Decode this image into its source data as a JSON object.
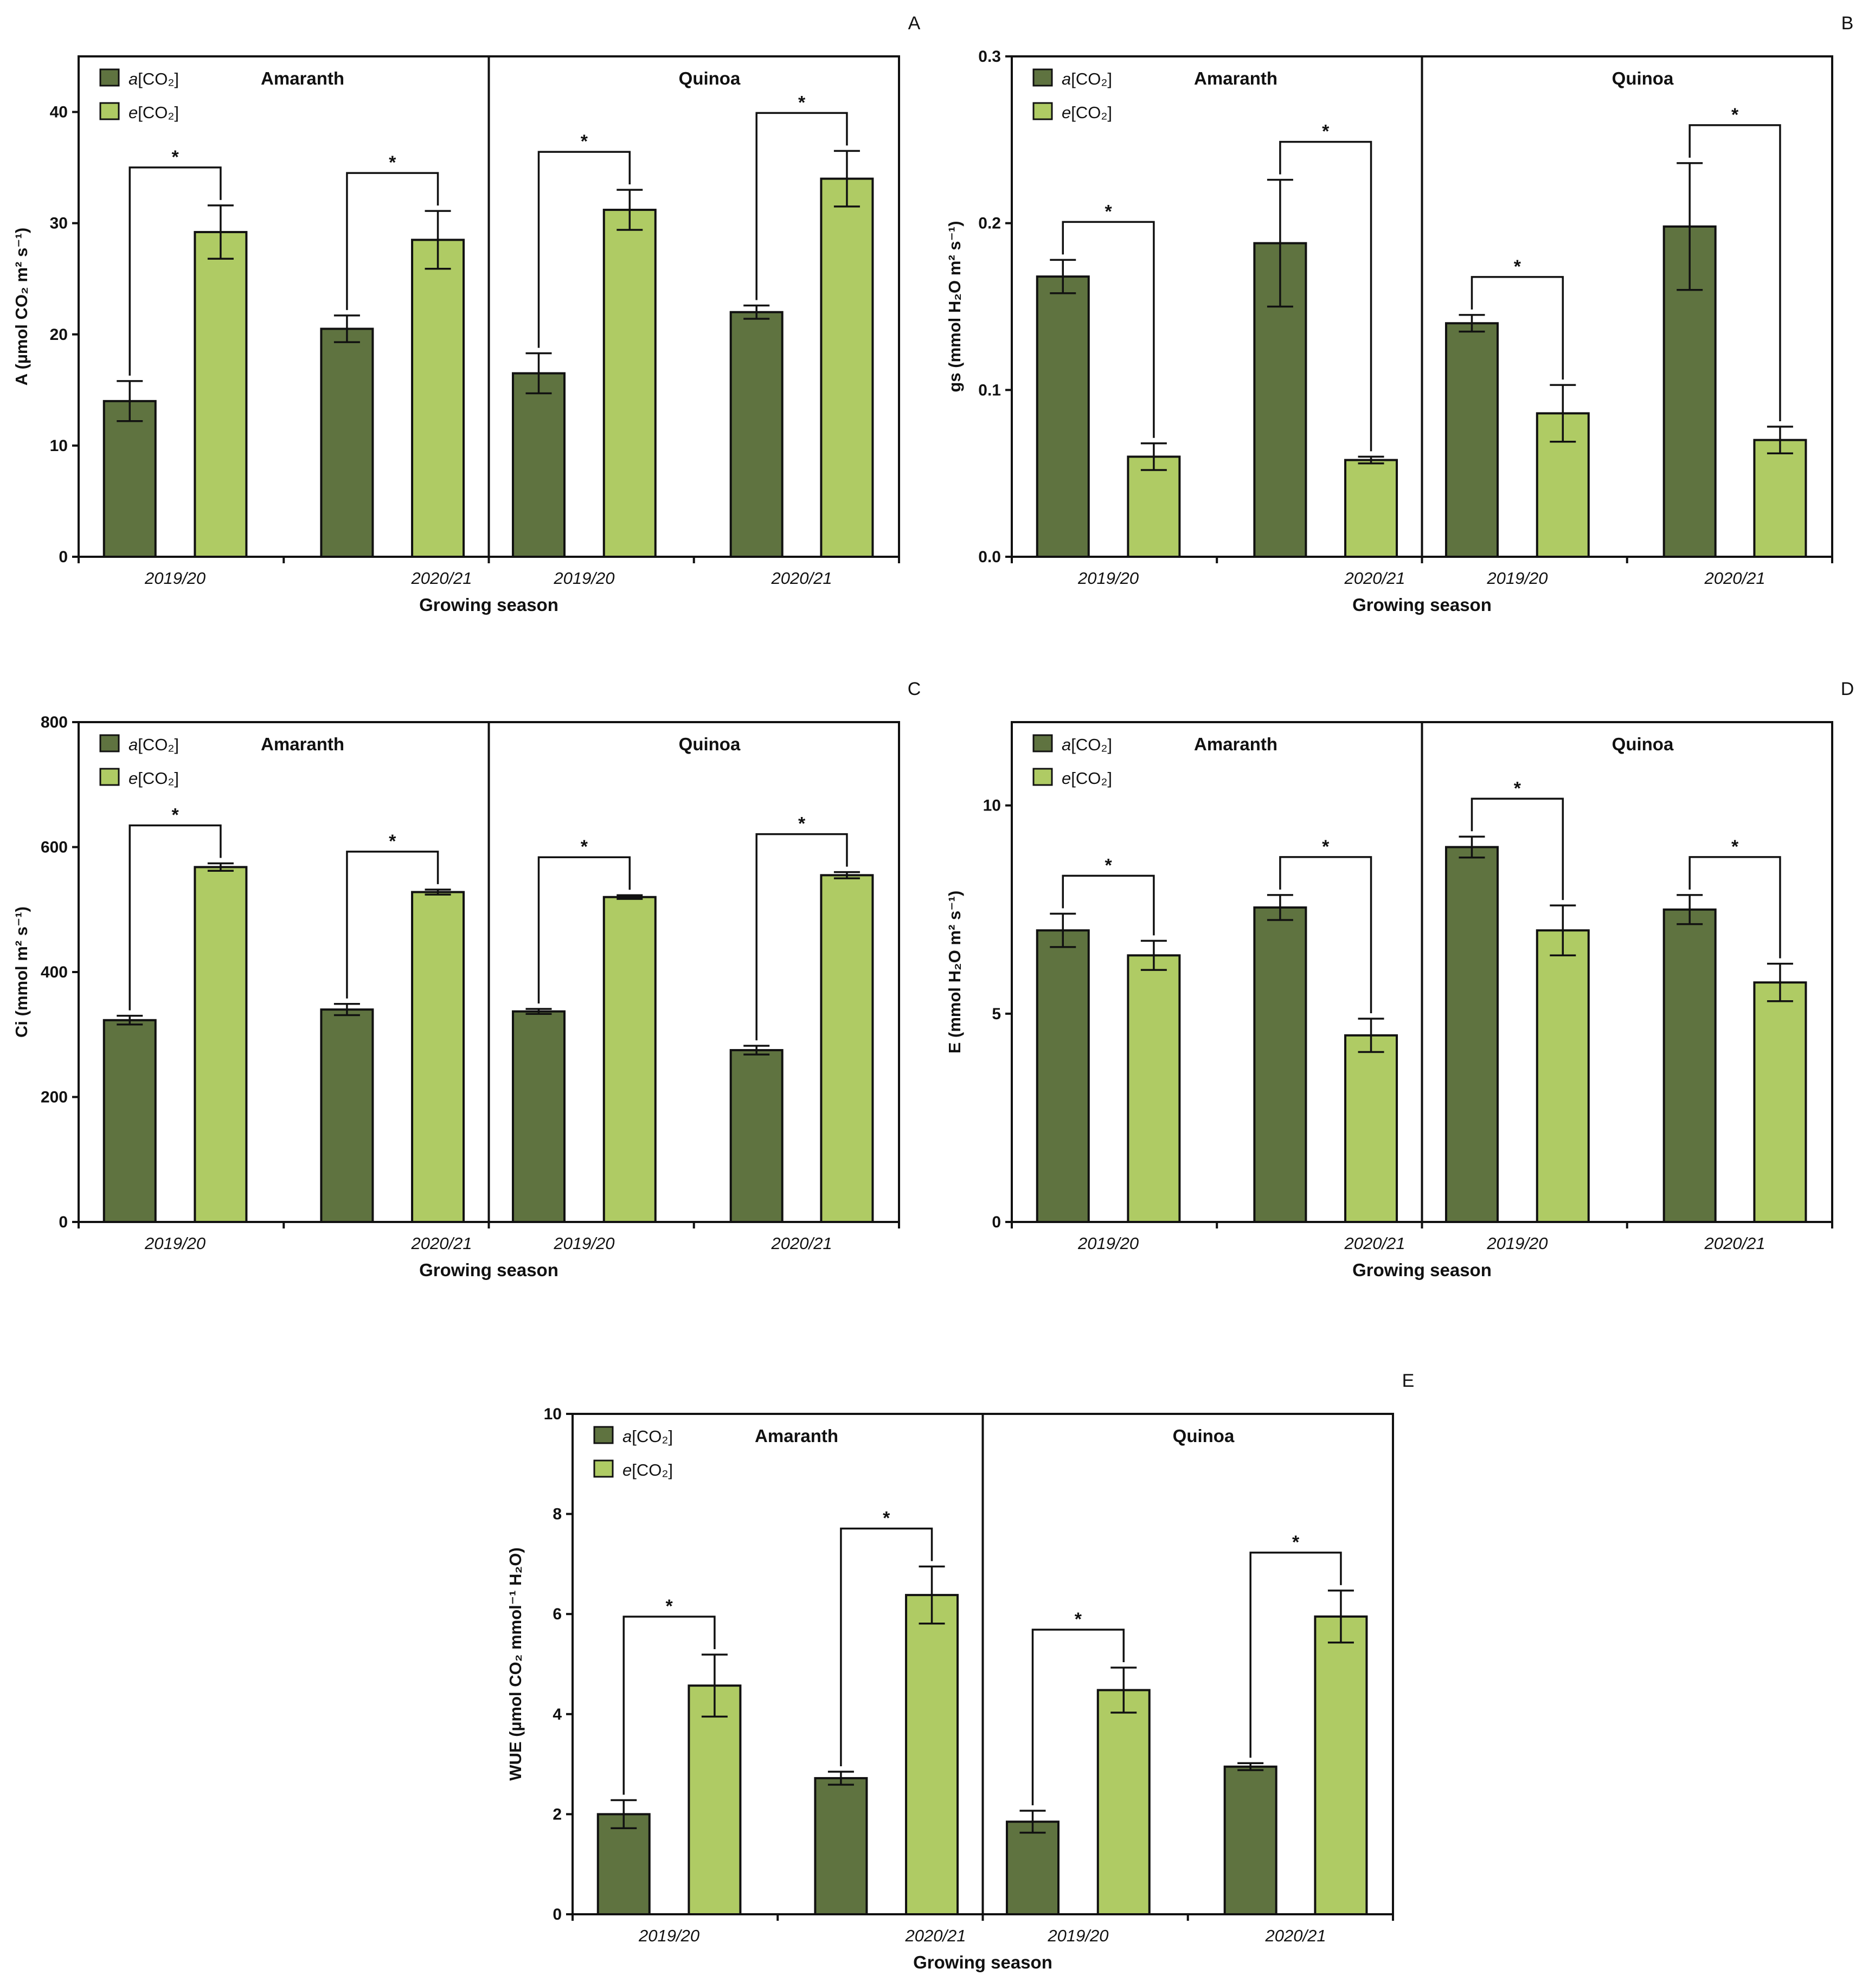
{
  "colors": {
    "ambient": "#5f7340",
    "elevated": "#afcb64",
    "stroke": "#111111"
  },
  "chart_data": [
    {
      "type": "bar",
      "panel": "A",
      "ylabel": "A (µmol CO₂ m² s⁻¹)",
      "xlabel": "Growing season",
      "ylim": [
        0,
        45
      ],
      "yticks": [
        0,
        10,
        20,
        30,
        40
      ],
      "groups": [
        "Amaranth",
        "Quinoa"
      ],
      "categories": [
        "2019/20",
        "2020/21",
        "2019/20",
        "2020/21"
      ],
      "legend": [
        {
          "prefix": "a",
          "rest": "[CO₂]"
        },
        {
          "prefix": "e",
          "rest": "[CO₂]"
        }
      ],
      "series": [
        {
          "name": "a[CO₂]",
          "values": [
            14.0,
            20.5,
            16.5,
            22.0
          ],
          "errors": [
            1.8,
            1.2,
            1.8,
            0.6
          ]
        },
        {
          "name": "e[CO₂]",
          "values": [
            29.2,
            28.5,
            31.2,
            34.0
          ],
          "errors": [
            2.4,
            2.6,
            1.8,
            2.5
          ]
        }
      ],
      "significance": [
        "*",
        "*",
        "*",
        "*"
      ]
    },
    {
      "type": "bar",
      "panel": "B",
      "ylabel": "gs (mmol H₂O m² s⁻¹)",
      "xlabel": "Growing season",
      "ylim": [
        0,
        0.3
      ],
      "yticks": [
        0.0,
        0.1,
        0.2,
        0.3
      ],
      "groups": [
        "Amaranth",
        "Quinoa"
      ],
      "categories": [
        "2019/20",
        "2020/21",
        "2019/20",
        "2020/21"
      ],
      "legend": [
        {
          "prefix": "a",
          "rest": "[CO₂]"
        },
        {
          "prefix": "e",
          "rest": "[CO₂]"
        }
      ],
      "series": [
        {
          "name": "a[CO₂]",
          "values": [
            0.168,
            0.188,
            0.14,
            0.198
          ],
          "errors": [
            0.01,
            0.038,
            0.005,
            0.038
          ]
        },
        {
          "name": "e[CO₂]",
          "values": [
            0.06,
            0.058,
            0.086,
            0.07
          ],
          "errors": [
            0.008,
            0.002,
            0.017,
            0.008
          ]
        }
      ],
      "significance": [
        "*",
        "*",
        "*",
        "*"
      ]
    },
    {
      "type": "bar",
      "panel": "C",
      "ylabel": "Ci (mmol m² s⁻¹)",
      "xlabel": "Growing season",
      "ylim": [
        0,
        800
      ],
      "yticks": [
        0,
        200,
        400,
        600,
        800
      ],
      "groups": [
        "Amaranth",
        "Quinoa"
      ],
      "categories": [
        "2019/20",
        "2020/21",
        "2019/20",
        "2020/21"
      ],
      "legend": [
        {
          "prefix": "a",
          "rest": "[CO₂]"
        },
        {
          "prefix": "e",
          "rest": "[CO₂]"
        }
      ],
      "series": [
        {
          "name": "a[CO₂]",
          "values": [
            323,
            340,
            337,
            275
          ],
          "errors": [
            7,
            9,
            4,
            7
          ]
        },
        {
          "name": "e[CO₂]",
          "values": [
            568,
            528,
            520,
            555
          ],
          "errors": [
            6,
            4,
            3,
            5
          ]
        }
      ],
      "significance": [
        "*",
        "*",
        "*",
        "*"
      ]
    },
    {
      "type": "bar",
      "panel": "D",
      "ylabel": "E (mmol H₂O m² s⁻¹)",
      "xlabel": "Growing season",
      "ylim": [
        0,
        12
      ],
      "yticks": [
        0,
        5,
        10
      ],
      "groups": [
        "Amaranth",
        "Quinoa"
      ],
      "categories": [
        "2019/20",
        "2020/21",
        "2019/20",
        "2020/21"
      ],
      "legend": [
        {
          "prefix": "a",
          "rest": "[CO₂]"
        },
        {
          "prefix": "e",
          "rest": "[CO₂]"
        }
      ],
      "series": [
        {
          "name": "a[CO₂]",
          "values": [
            7.0,
            7.55,
            9.0,
            7.5
          ],
          "errors": [
            0.4,
            0.3,
            0.25,
            0.35
          ]
        },
        {
          "name": "e[CO₂]",
          "values": [
            6.4,
            4.48,
            7.0,
            5.75
          ],
          "errors": [
            0.35,
            0.4,
            0.6,
            0.45
          ]
        }
      ],
      "significance": [
        "*",
        "*",
        "*",
        "*"
      ]
    },
    {
      "type": "bar",
      "panel": "E",
      "ylabel": "WUE (µmol CO₂ mmol⁻¹ H₂O)",
      "xlabel": "Growing season",
      "ylim": [
        0,
        10
      ],
      "yticks": [
        0,
        2,
        4,
        6,
        8,
        10
      ],
      "groups": [
        "Amaranth",
        "Quinoa"
      ],
      "categories": [
        "2019/20",
        "2020/21",
        "2019/20",
        "2020/21"
      ],
      "legend": [
        {
          "prefix": "a",
          "rest": "[CO₂]"
        },
        {
          "prefix": "e",
          "rest": "[CO₂]"
        }
      ],
      "series": [
        {
          "name": "a[CO₂]",
          "values": [
            2.0,
            2.72,
            1.85,
            2.95
          ],
          "errors": [
            0.28,
            0.13,
            0.22,
            0.07
          ]
        },
        {
          "name": "e[CO₂]",
          "values": [
            4.57,
            6.38,
            4.48,
            5.95
          ],
          "errors": [
            0.62,
            0.57,
            0.45,
            0.52
          ]
        }
      ],
      "significance": [
        "*",
        "*",
        "*",
        "*"
      ]
    }
  ]
}
